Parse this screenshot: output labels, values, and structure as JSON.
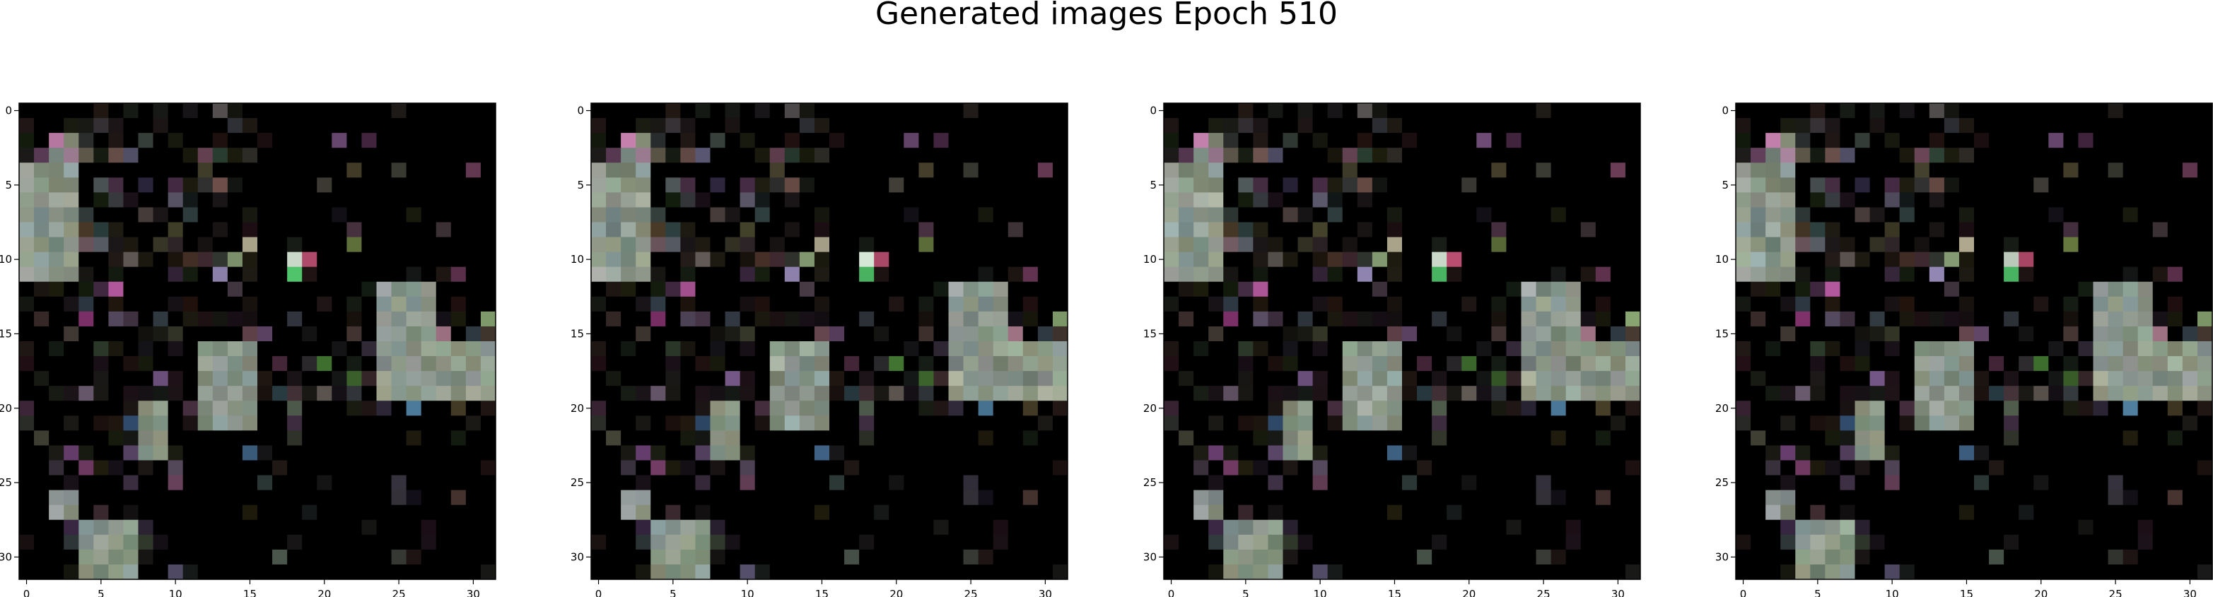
{
  "figure": {
    "title": "Generated images Epoch 510"
  },
  "panels": [
    {
      "name": "generated-image-1",
      "x_ticks": [
        "0",
        "5",
        "10",
        "15",
        "20",
        "25",
        "30"
      ],
      "y_ticks": [
        "0",
        "5",
        "10",
        "15",
        "20",
        "25",
        "30"
      ]
    },
    {
      "name": "generated-image-2",
      "x_ticks": [
        "0",
        "5",
        "10",
        "15",
        "20",
        "25",
        "30"
      ],
      "y_ticks": [
        "0",
        "5",
        "10",
        "15",
        "20",
        "25",
        "30"
      ]
    },
    {
      "name": "generated-image-3",
      "x_ticks": [
        "0",
        "5",
        "10",
        "15",
        "20",
        "25",
        "30"
      ],
      "y_ticks": [
        "0",
        "5",
        "10",
        "15",
        "20",
        "25",
        "30"
      ]
    },
    {
      "name": "generated-image-4",
      "x_ticks": [
        "0",
        "5",
        "10",
        "15",
        "20",
        "25",
        "30"
      ],
      "y_ticks": [
        "0",
        "5",
        "10",
        "15",
        "20",
        "25",
        "30"
      ]
    }
  ],
  "image": {
    "pixel_grid": "32x32",
    "background_color": "#000000",
    "dominant_patch_color": "#8e9a8c",
    "accent_colors": [
      "#b5769f",
      "#4fc46a",
      "#4c7a9a",
      "#7a3f66",
      "#5a6f3a"
    ]
  }
}
